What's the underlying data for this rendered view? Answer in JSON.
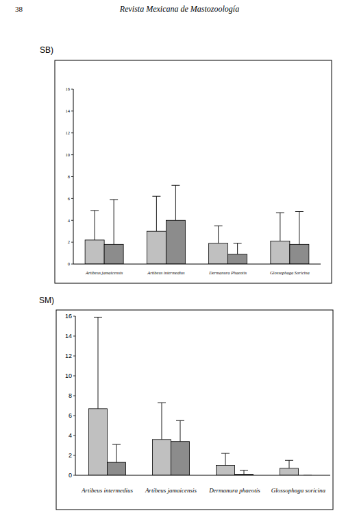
{
  "page": {
    "number": "38",
    "journal": "Revista Mexicana de Mastozoología"
  },
  "chart_data": [
    {
      "type": "bar",
      "title": "SB)",
      "categories": [
        "Artibeus jamaicensis",
        "Artibeus intermedius",
        "Dermanura Phaeotis",
        "Glossophaga Soricina"
      ],
      "series": [
        {
          "color": "#c0c0c0",
          "values": [
            2.2,
            3.0,
            1.9,
            2.1
          ],
          "errors": [
            2.7,
            3.2,
            1.6,
            2.6
          ]
        },
        {
          "color": "#8c8c8c",
          "values": [
            1.8,
            4.0,
            0.9,
            1.8
          ],
          "errors": [
            4.1,
            3.2,
            1.0,
            3.0
          ]
        }
      ],
      "ylim": [
        0,
        16
      ],
      "yticks": [
        0,
        2,
        4,
        6,
        8,
        10,
        12,
        14,
        16
      ],
      "grid": false
    },
    {
      "type": "bar",
      "title": "SM)",
      "categories": [
        "Artibeus intermedius",
        "Artibeus jamaicensis",
        "Dermanura phaeotis",
        "Glossophaga soricina"
      ],
      "series": [
        {
          "color": "#c0c0c0",
          "values": [
            6.7,
            3.6,
            1.0,
            0.7
          ],
          "errors": [
            9.2,
            3.7,
            1.2,
            0.8
          ]
        },
        {
          "color": "#8c8c8c",
          "values": [
            1.3,
            3.4,
            0.1,
            0.0
          ],
          "errors": [
            1.8,
            2.1,
            0.4,
            0.0
          ]
        }
      ],
      "ylim": [
        0,
        16
      ],
      "yticks": [
        0,
        2,
        4,
        6,
        8,
        10,
        12,
        14,
        16
      ],
      "grid": false
    }
  ]
}
